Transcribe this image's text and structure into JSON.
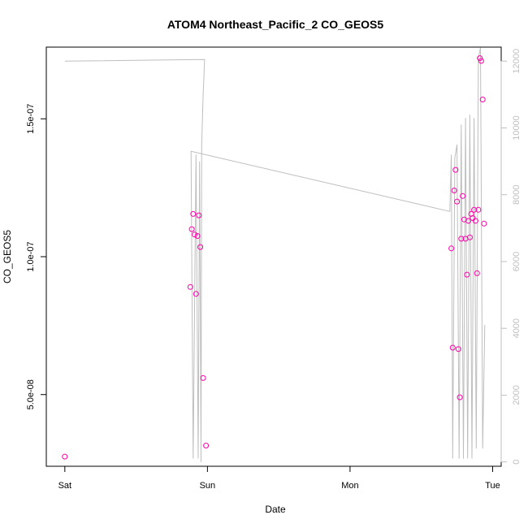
{
  "chart_data": {
    "type": "scatter",
    "title": "ATOM4 Northeast_Pacific_2 CO_GEOS5",
    "xlabel": "Date",
    "ylabel": "CO_GEOS5",
    "x_ticks": [
      {
        "day": 0,
        "label": "Sat"
      },
      {
        "day": 1,
        "label": "Sun"
      },
      {
        "day": 2,
        "label": "Mon"
      },
      {
        "day": 3,
        "label": "Tue"
      }
    ],
    "y_ticks": [
      {
        "value": 5e-08,
        "label": "5.0e-08"
      },
      {
        "value": 1e-07,
        "label": "1.0e-07"
      },
      {
        "value": 1.5e-07,
        "label": "1.5e-07"
      }
    ],
    "y2_ticks": [
      {
        "value": 0,
        "label": "0"
      },
      {
        "value": 2000,
        "label": "2000"
      },
      {
        "value": 4000,
        "label": "4000"
      },
      {
        "value": 6000,
        "label": "6000"
      },
      {
        "value": 8000,
        "label": "8000"
      },
      {
        "value": 10000,
        "label": "10000"
      },
      {
        "value": 12000,
        "label": "12000"
      }
    ],
    "xlim": [
      -0.13,
      3.06
    ],
    "ylim": [
      2.4e-08,
      1.76e-07
    ],
    "y2lim": [
      -130,
      12420
    ],
    "grid": false,
    "colors": {
      "points": "#ff00aa",
      "altitude_line": "#bebebe",
      "axis": "#000000",
      "right_axis": "#bfbfbf"
    },
    "series": [
      {
        "name": "CO_GEOS5",
        "axis": "left",
        "style": "points",
        "points": [
          [
            0.0,
            2.75e-08
          ],
          [
            0.88,
            8.9e-08
          ],
          [
            0.89,
            1.1e-07
          ],
          [
            0.9,
            1.155e-07
          ],
          [
            0.91,
            1.08e-07
          ],
          [
            0.92,
            8.65e-08
          ],
          [
            0.93,
            1.075e-07
          ],
          [
            0.94,
            1.15e-07
          ],
          [
            0.95,
            1.035e-07
          ],
          [
            0.97,
            5.6e-08
          ],
          [
            0.99,
            3.15e-08
          ],
          [
            2.71,
            1.03e-07
          ],
          [
            2.72,
            6.7e-08
          ],
          [
            2.73,
            1.24e-07
          ],
          [
            2.74,
            1.315e-07
          ],
          [
            2.75,
            1.2e-07
          ],
          [
            2.76,
            6.65e-08
          ],
          [
            2.77,
            4.9e-08
          ],
          [
            2.78,
            1.065e-07
          ],
          [
            2.79,
            1.22e-07
          ],
          [
            2.8,
            1.135e-07
          ],
          [
            2.81,
            1.065e-07
          ],
          [
            2.82,
            9.35e-08
          ],
          [
            2.83,
            1.13e-07
          ],
          [
            2.84,
            1.07e-07
          ],
          [
            2.85,
            1.155e-07
          ],
          [
            2.86,
            1.14e-07
          ],
          [
            2.87,
            1.17e-07
          ],
          [
            2.88,
            1.13e-07
          ],
          [
            2.89,
            9.4e-08
          ],
          [
            2.9,
            1.17e-07
          ],
          [
            2.91,
            1.72e-07
          ],
          [
            2.92,
            1.71e-07
          ],
          [
            2.93,
            1.57e-07
          ],
          [
            2.94,
            1.12e-07
          ]
        ]
      },
      {
        "axis": "right",
        "style": "line",
        "points": [
          [
            0.0,
            12000
          ],
          [
            0.98,
            12050
          ],
          [
            0.97,
            11000
          ],
          [
            0.96,
            9500
          ],
          [
            0.955,
            0
          ],
          [
            0.945,
            9000
          ],
          [
            0.935,
            100
          ],
          [
            0.92,
            9200
          ],
          [
            0.9,
            100
          ],
          [
            0.885,
            9300
          ],
          [
            2.7,
            7500
          ],
          [
            2.71,
            9200
          ],
          [
            2.72,
            100
          ],
          [
            2.735,
            9100
          ],
          [
            2.75,
            9500
          ],
          [
            2.765,
            100
          ],
          [
            2.78,
            10100
          ],
          [
            2.795,
            100
          ],
          [
            2.81,
            10300
          ],
          [
            2.825,
            100
          ],
          [
            2.84,
            10400
          ],
          [
            2.855,
            100
          ],
          [
            2.87,
            10300
          ],
          [
            2.885,
            400
          ],
          [
            2.9,
            12100
          ],
          [
            2.915,
            12400
          ],
          [
            2.93,
            400
          ],
          [
            2.945,
            4100
          ]
        ]
      }
    ]
  }
}
